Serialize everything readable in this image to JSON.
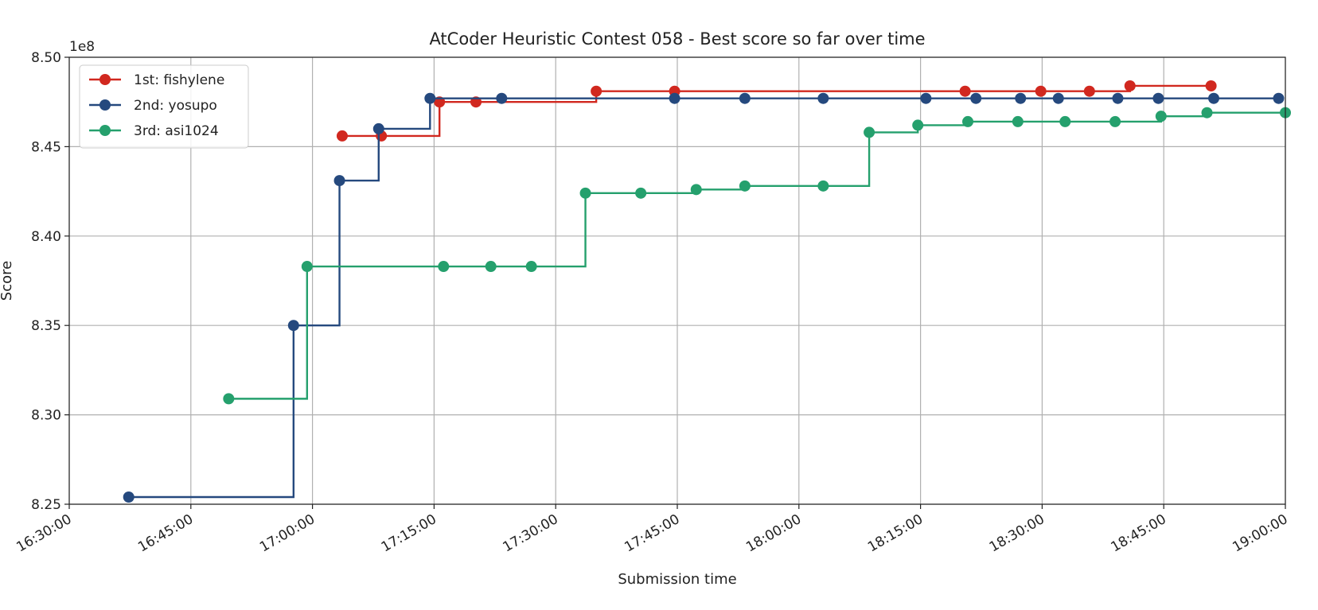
{
  "chart_data": {
    "type": "line",
    "step": "post",
    "title": "AtCoder Heuristic Contest 058 - Best score so far over time",
    "xlabel": "Submission time",
    "ylabel": "Score",
    "y_offset_label": "1e8",
    "xlim": [
      "16:30:00",
      "19:00:00"
    ],
    "ylim": [
      8.25,
      8.5
    ],
    "x_ticks": [
      "16:30:00",
      "16:45:00",
      "17:00:00",
      "17:15:00",
      "17:30:00",
      "17:45:00",
      "18:00:00",
      "18:15:00",
      "18:30:00",
      "18:45:00",
      "19:00:00"
    ],
    "y_ticks": [
      "8.25",
      "8.30",
      "8.35",
      "8.40",
      "8.45",
      "8.50"
    ],
    "grid": true,
    "legend_position": "top-left",
    "series": [
      {
        "name": "1st: fishylene",
        "color": "#d1281f",
        "points": [
          {
            "x": "17:03:40",
            "y": 8.456
          },
          {
            "x": "17:08:30",
            "y": 8.456
          },
          {
            "x": "17:15:40",
            "y": 8.475
          },
          {
            "x": "17:20:10",
            "y": 8.475
          },
          {
            "x": "17:35:00",
            "y": 8.481
          },
          {
            "x": "17:44:40",
            "y": 8.481
          },
          {
            "x": "18:20:30",
            "y": 8.481
          },
          {
            "x": "18:29:50",
            "y": 8.481
          },
          {
            "x": "18:35:50",
            "y": 8.481
          },
          {
            "x": "18:40:50",
            "y": 8.484
          },
          {
            "x": "18:50:50",
            "y": 8.484
          }
        ]
      },
      {
        "name": "2nd: yosupo",
        "color": "#25497e",
        "points": [
          {
            "x": "16:37:20",
            "y": 8.254
          },
          {
            "x": "16:57:40",
            "y": 8.35
          },
          {
            "x": "17:03:20",
            "y": 8.431
          },
          {
            "x": "17:08:10",
            "y": 8.46
          },
          {
            "x": "17:14:30",
            "y": 8.477
          },
          {
            "x": "17:23:20",
            "y": 8.477
          },
          {
            "x": "17:44:40",
            "y": 8.477
          },
          {
            "x": "17:53:20",
            "y": 8.477
          },
          {
            "x": "18:03:00",
            "y": 8.477
          },
          {
            "x": "18:15:40",
            "y": 8.477
          },
          {
            "x": "18:21:50",
            "y": 8.477
          },
          {
            "x": "18:27:20",
            "y": 8.477
          },
          {
            "x": "18:32:00",
            "y": 8.477
          },
          {
            "x": "18:39:20",
            "y": 8.477
          },
          {
            "x": "18:44:20",
            "y": 8.477
          },
          {
            "x": "18:51:10",
            "y": 8.477
          },
          {
            "x": "18:59:10",
            "y": 8.477
          }
        ]
      },
      {
        "name": "3rd: asi1024",
        "color": "#25a06d",
        "points": [
          {
            "x": "16:49:40",
            "y": 8.309
          },
          {
            "x": "16:59:20",
            "y": 8.383
          },
          {
            "x": "17:16:10",
            "y": 8.383
          },
          {
            "x": "17:22:00",
            "y": 8.383
          },
          {
            "x": "17:27:00",
            "y": 8.383
          },
          {
            "x": "17:33:40",
            "y": 8.424
          },
          {
            "x": "17:40:30",
            "y": 8.424
          },
          {
            "x": "17:47:20",
            "y": 8.426
          },
          {
            "x": "17:53:20",
            "y": 8.428
          },
          {
            "x": "18:03:00",
            "y": 8.428
          },
          {
            "x": "18:08:40",
            "y": 8.458
          },
          {
            "x": "18:14:40",
            "y": 8.462
          },
          {
            "x": "18:20:50",
            "y": 8.464
          },
          {
            "x": "18:27:00",
            "y": 8.464
          },
          {
            "x": "18:32:50",
            "y": 8.464
          },
          {
            "x": "18:39:00",
            "y": 8.464
          },
          {
            "x": "18:44:40",
            "y": 8.467
          },
          {
            "x": "18:50:20",
            "y": 8.469
          },
          {
            "x": "19:00:00",
            "y": 8.469
          }
        ]
      }
    ]
  }
}
